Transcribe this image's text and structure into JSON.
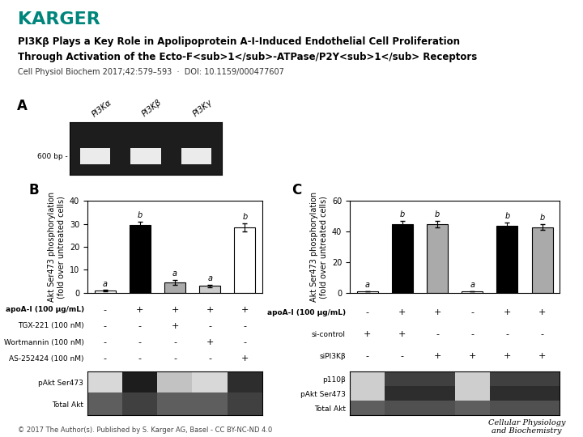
{
  "logo": "KARGER",
  "color": "#00857C",
  "title": "PI3Kβ Plays a Key Role in Apolipoprotein A-I-Induced Endothelial Cell Proliferation",
  "subtitle": "Through Activation of the Ecto-F<sub>1</sub>-ATPase/P2Y<sub>1</sub> Receptors",
  "annotations": [
    "Cell Physiol Biochem 2017;42:579–593  ·  DOI: 10.1159/000477607",
    "© 2017 The Author(s). Published by S. Karger AG, Basel - CC BY-NC-ND 4.0",
    "Cellular Physiology\nand Biochemistry"
  ],
  "chart_data": [
    {
      "panel": "A",
      "type": "gel",
      "categories": [
        "PI3Kα",
        "PI3Kβ",
        "PI3Kγ"
      ],
      "annotations": [
        "600 bp -"
      ]
    },
    {
      "panel": "B",
      "type": "bar",
      "values": [
        1,
        29.5,
        4.5,
        3.0,
        28.5
      ],
      "errors": [
        0.2,
        1.5,
        1.0,
        0.5,
        1.8
      ],
      "colors": [
        "white",
        "black",
        "#aaaaaa",
        "#cccccc",
        "white"
      ],
      "annotations": [
        "a",
        "b",
        "a",
        "a",
        "b"
      ],
      "ylabel": "Akt Ser473 phosphorylation\n(fold over untreated cells)",
      "ylim": [
        0,
        40
      ],
      "yticks": [
        0,
        10,
        20,
        30,
        40
      ],
      "tick_labels": "y",
      "table": {
        "rows": [
          "apoA-I (100 μg/mL)",
          "TGX-221 (100 nM)",
          "Wortmannin (100 nM)",
          "AS-252424 (100 nM)"
        ],
        "cells": [
          [
            "-",
            "+",
            "+",
            "+",
            "+"
          ],
          [
            "-",
            "-",
            "+",
            "-",
            "-"
          ],
          [
            "-",
            "-",
            "-",
            "+",
            "-"
          ],
          [
            "-",
            "-",
            "-",
            "-",
            "+"
          ]
        ]
      },
      "blot": {
        "rows": [
          "pAkt Ser473",
          "Total Akt"
        ],
        "cells": [
          [
            0.25,
            0.9,
            0.35,
            0.25,
            0.85
          ],
          [
            0.7,
            0.8,
            0.7,
            0.7,
            0.8
          ]
        ],
        "clim": [
          0,
          1
        ]
      }
    },
    {
      "panel": "C",
      "type": "bar",
      "values": [
        1,
        45,
        45,
        1,
        44,
        43
      ],
      "errors": [
        0.2,
        2.0,
        2.0,
        0.2,
        2.0,
        2.0
      ],
      "colors": [
        "white",
        "black",
        "#aaaaaa",
        "white",
        "black",
        "#aaaaaa"
      ],
      "annotations": [
        "a",
        "b",
        "b",
        "a",
        "b",
        "b"
      ],
      "ylabel": "Akt Ser473 phosphorylation\n(fold over untreated cells)",
      "ylim": [
        0,
        60
      ],
      "yticks": [
        0,
        20,
        40,
        60
      ],
      "tick_labels": "y",
      "table": {
        "rows": [
          "apoA-I (100 μg/mL)",
          "si-control",
          "siPI3Kβ"
        ],
        "cells": [
          [
            "-",
            "+",
            "+",
            "-",
            "+",
            "+"
          ],
          [
            "+",
            "+",
            "-",
            "-",
            "-",
            "-"
          ],
          [
            "-",
            "-",
            "+",
            "+",
            "+",
            "+"
          ]
        ]
      },
      "blot": {
        "rows": [
          "p110β",
          "pAkt Ser473",
          "Total Akt"
        ],
        "cells": [
          [
            0.3,
            0.8,
            0.8,
            0.3,
            0.8,
            0.8
          ],
          [
            0.3,
            0.85,
            0.85,
            0.3,
            0.85,
            0.85
          ],
          [
            0.7,
            0.75,
            0.75,
            0.7,
            0.75,
            0.75
          ]
        ],
        "clim": [
          0,
          1
        ]
      }
    }
  ]
}
